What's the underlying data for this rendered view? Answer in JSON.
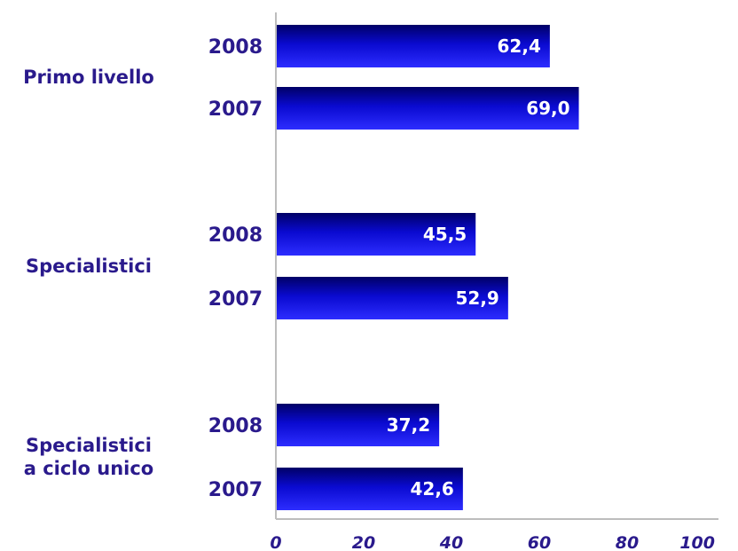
{
  "chart_data": {
    "type": "bar",
    "orientation": "horizontal",
    "groups": [
      {
        "label_lines": [
          "Primo livello"
        ],
        "bars": [
          {
            "year": "2008",
            "value": 62.4,
            "label": "62,4"
          },
          {
            "year": "2007",
            "value": 69.0,
            "label": "69,0"
          }
        ]
      },
      {
        "label_lines": [
          "Specialistici"
        ],
        "bars": [
          {
            "year": "2008",
            "value": 45.5,
            "label": "45,5"
          },
          {
            "year": "2007",
            "value": 52.9,
            "label": "52,9"
          }
        ]
      },
      {
        "label_lines": [
          "Specialistici",
          "a ciclo unico"
        ],
        "bars": [
          {
            "year": "2008",
            "value": 37.2,
            "label": "37,2"
          },
          {
            "year": "2007",
            "value": 42.6,
            "label": "42,6"
          }
        ]
      }
    ],
    "xlim": [
      0,
      100
    ],
    "xticks": [
      "0",
      "20",
      "40",
      "60",
      "80",
      "100"
    ],
    "grid": false,
    "colors": {
      "bar_dark": "#000066",
      "bar_mid": "#0a0ad0",
      "bar_light": "#2d2dff",
      "text": "#2a1a8c",
      "value_text": "#ffffff",
      "axis": "#bdbdbd"
    }
  }
}
